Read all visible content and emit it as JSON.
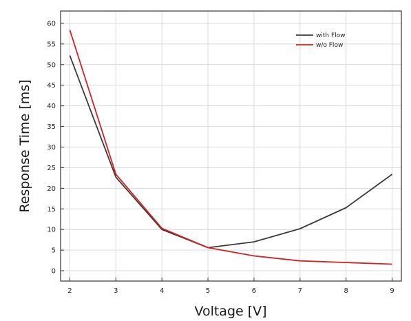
{
  "chart_data": {
    "type": "line",
    "title": "",
    "xlabel": "Voltage [V]",
    "ylabel": "Response Time [ms]",
    "xlim": [
      1.8,
      9.2
    ],
    "ylim": [
      -2.5,
      63
    ],
    "x_ticks": [
      2,
      3,
      4,
      5,
      6,
      7,
      8,
      9
    ],
    "y_ticks": [
      0,
      5,
      10,
      15,
      20,
      25,
      30,
      35,
      40,
      45,
      50,
      55,
      60
    ],
    "grid": true,
    "legend_position": "top-right",
    "x": [
      2,
      3,
      4,
      5,
      6,
      7,
      8,
      9
    ],
    "series": [
      {
        "name": "with Flow",
        "color": "#3a3a3a",
        "values": [
          52.2,
          22.7,
          10.0,
          5.6,
          7.0,
          10.2,
          15.3,
          23.4
        ]
      },
      {
        "name": "w/o Flow",
        "color": "#d62020",
        "values": [
          58.4,
          23.4,
          10.3,
          5.6,
          3.6,
          2.4,
          2.0,
          1.6
        ]
      }
    ]
  }
}
